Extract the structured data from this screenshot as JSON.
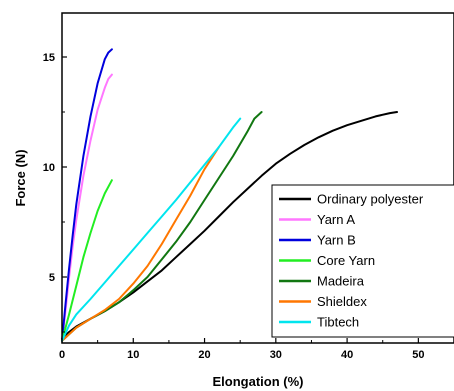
{
  "chart_data": {
    "type": "line",
    "xlabel": "Elongation (%)",
    "ylabel": "Force (N)",
    "xlim": [
      0,
      55
    ],
    "ylim": [
      2,
      17
    ],
    "x_ticks": [
      0,
      10,
      20,
      30,
      40,
      50
    ],
    "y_ticks": [
      5,
      10,
      15
    ],
    "legend_position": "bottom-right",
    "grid": false,
    "series": [
      {
        "name": "Ordinary polyester",
        "color": "#000000",
        "x": [
          0,
          1,
          2,
          4,
          6,
          8,
          10,
          12,
          14,
          16,
          18,
          20,
          22,
          24,
          26,
          28,
          30,
          32,
          34,
          36,
          38,
          40,
          42,
          44,
          46,
          47
        ],
        "y": [
          2.2,
          2.5,
          2.75,
          3.1,
          3.45,
          3.85,
          4.3,
          4.8,
          5.3,
          5.9,
          6.5,
          7.1,
          7.75,
          8.4,
          9.0,
          9.6,
          10.15,
          10.6,
          11.0,
          11.35,
          11.65,
          11.9,
          12.1,
          12.3,
          12.45,
          12.5
        ]
      },
      {
        "name": "Yarn A",
        "color": "#ff77ff",
        "x": [
          0,
          0.5,
          1,
          1.5,
          2,
          3,
          4,
          5,
          6,
          6.5,
          7
        ],
        "y": [
          2.1,
          3.5,
          5.0,
          6.4,
          7.6,
          9.6,
          11.2,
          12.6,
          13.6,
          14.0,
          14.2
        ]
      },
      {
        "name": "Yarn B",
        "color": "#0000dd",
        "x": [
          0,
          0.5,
          1,
          1.5,
          2,
          3,
          4,
          5,
          6,
          6.5,
          7
        ],
        "y": [
          2.1,
          3.8,
          5.4,
          6.9,
          8.3,
          10.5,
          12.3,
          13.8,
          14.9,
          15.2,
          15.35
        ]
      },
      {
        "name": "Core Yarn",
        "color": "#22ee22",
        "x": [
          0,
          1,
          2,
          3,
          4,
          5,
          6,
          7
        ],
        "y": [
          2.1,
          3.3,
          4.6,
          5.9,
          7.0,
          8.0,
          8.8,
          9.4
        ]
      },
      {
        "name": "Madeira",
        "color": "#117711",
        "x": [
          0,
          2,
          4,
          6,
          8,
          10,
          12,
          14,
          16,
          18,
          20,
          22,
          24,
          26,
          27,
          28
        ],
        "y": [
          2.1,
          2.7,
          3.1,
          3.45,
          3.85,
          4.4,
          5.0,
          5.8,
          6.6,
          7.5,
          8.5,
          9.5,
          10.5,
          11.6,
          12.2,
          12.5
        ]
      },
      {
        "name": "Shieldex",
        "color": "#ff7700",
        "x": [
          0,
          2,
          4,
          6,
          8,
          10,
          12,
          14,
          16,
          18,
          20,
          21,
          22
        ],
        "y": [
          2.1,
          2.7,
          3.1,
          3.5,
          4.0,
          4.7,
          5.5,
          6.5,
          7.6,
          8.7,
          9.9,
          10.4,
          10.9
        ]
      },
      {
        "name": "Tibtech",
        "color": "#00e5ee",
        "x": [
          0,
          1,
          2,
          4,
          6,
          8,
          10,
          12,
          14,
          16,
          18,
          20,
          22,
          24,
          25
        ],
        "y": [
          2.1,
          2.8,
          3.3,
          4.0,
          4.75,
          5.5,
          6.25,
          7.0,
          7.75,
          8.5,
          9.3,
          10.1,
          10.9,
          11.8,
          12.2
        ]
      }
    ]
  }
}
